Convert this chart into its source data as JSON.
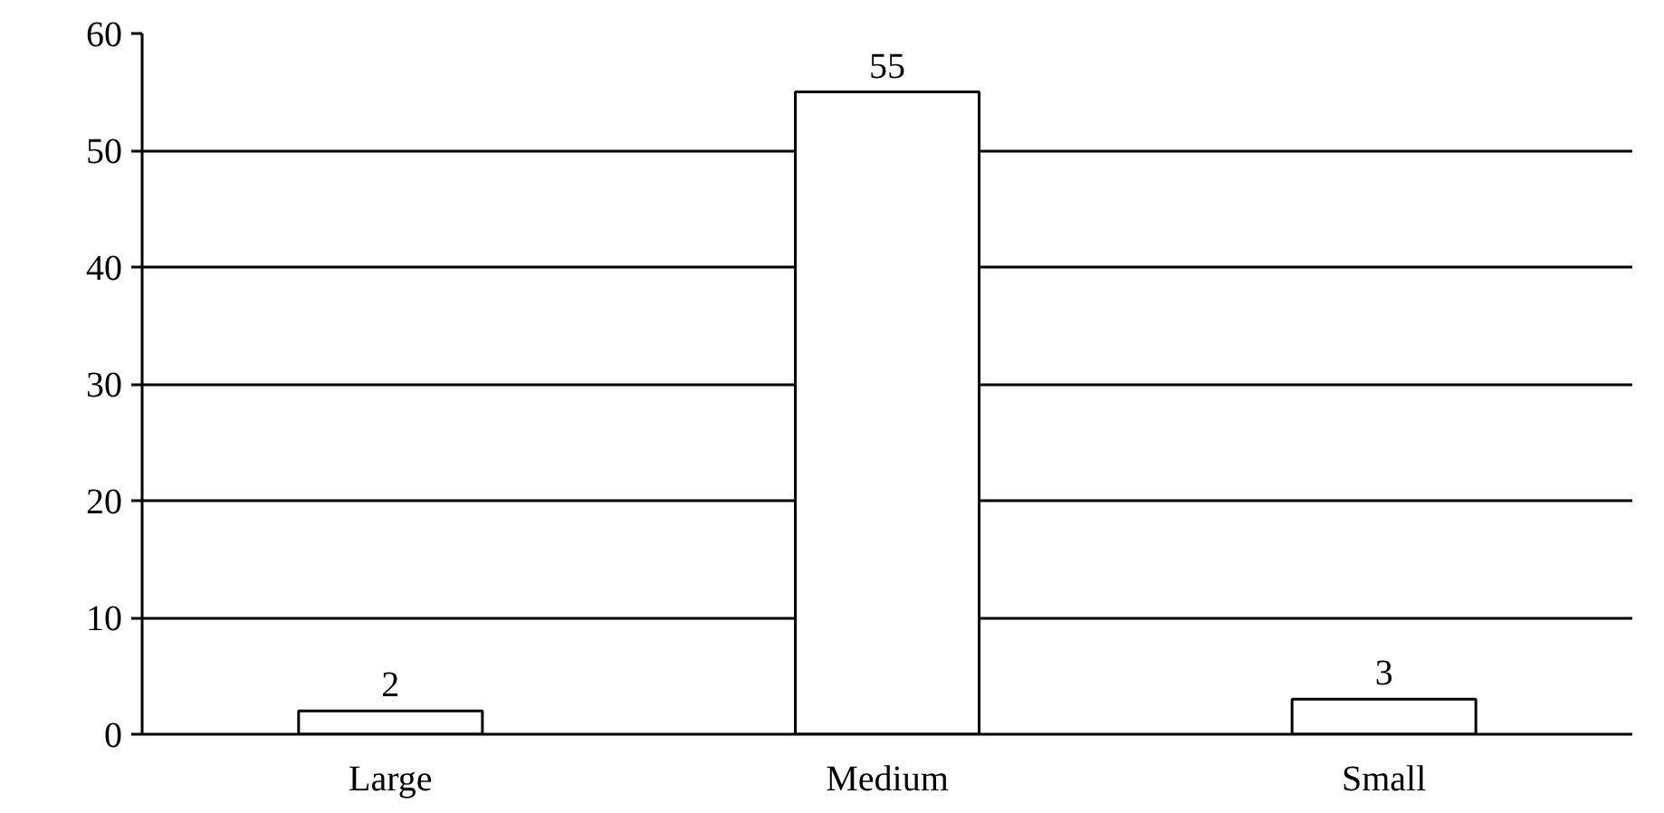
{
  "chart_data": {
    "type": "bar",
    "categories": [
      "Large",
      "Medium",
      "Small"
    ],
    "values": [
      2,
      55,
      3
    ],
    "color": "#ffffff",
    "ylim": [
      0,
      60
    ],
    "yticks": [
      0,
      10,
      20,
      30,
      40,
      50,
      60
    ],
    "grid": "y",
    "data_labels": true
  }
}
